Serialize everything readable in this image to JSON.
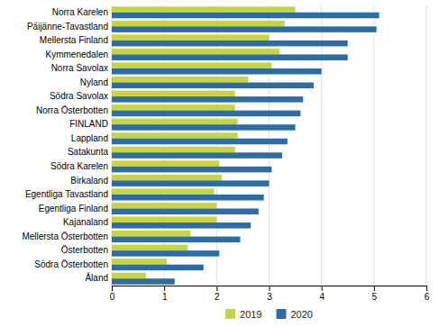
{
  "chart_data": {
    "type": "bar",
    "orientation": "horizontal",
    "categories": [
      "Norra Karelen",
      "Päijänne-Tavastland",
      "Mellersta Finland",
      "Kymmenedalen",
      "Norra Savolax",
      "Nyland",
      "Södra Savolax",
      "Norra Österbotten",
      "FINLAND",
      "Lappland",
      "Satakunta",
      "Södra Karelen",
      "Birkaland",
      "Egentliga Tavastland",
      "Egentliga Finland",
      "Kajanaland",
      "Mellersta Österbotten",
      "Österbotten",
      "Södra Österbotten",
      "Åland"
    ],
    "series": [
      {
        "name": "2019",
        "color": "#c8d444",
        "values": [
          3.5,
          3.3,
          3.0,
          3.2,
          3.05,
          2.6,
          2.35,
          2.35,
          2.4,
          2.4,
          2.35,
          2.05,
          2.1,
          1.95,
          2.0,
          2.0,
          1.5,
          1.45,
          1.05,
          0.65
        ]
      },
      {
        "name": "2020",
        "color": "#2e6da4",
        "values": [
          5.1,
          5.05,
          4.5,
          4.5,
          4.0,
          3.85,
          3.65,
          3.6,
          3.5,
          3.35,
          3.25,
          3.05,
          3.0,
          2.9,
          2.8,
          2.65,
          2.45,
          2.05,
          1.75,
          1.2
        ]
      }
    ],
    "xlim": [
      0,
      6
    ],
    "xticks": [
      0,
      1,
      2,
      3,
      4,
      5,
      6
    ],
    "grid": true,
    "legend": "bottom"
  }
}
